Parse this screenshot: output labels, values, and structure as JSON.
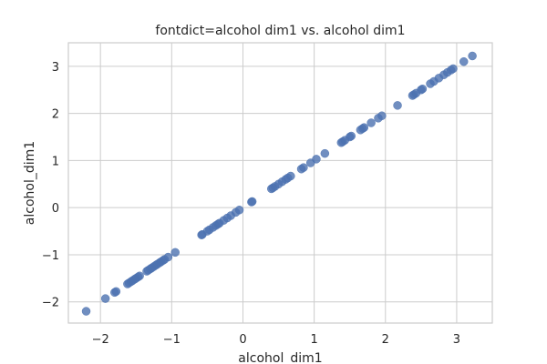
{
  "chart_data": {
    "type": "scatter",
    "title": "fontdict=alcohol dim1 vs. alcohol dim1",
    "xlabel": "alcohol_dim1",
    "ylabel": "alcohol_dim1",
    "xlim": [
      -2.45,
      3.5
    ],
    "ylim": [
      -2.45,
      3.5
    ],
    "xticks": [
      -2,
      -1,
      0,
      1,
      2,
      3
    ],
    "yticks": [
      -2,
      -1,
      0,
      1,
      2,
      3
    ],
    "xtick_labels": [
      "−2",
      "−1",
      "0",
      "1",
      "2",
      "3"
    ],
    "ytick_labels": [
      "−2",
      "−1",
      "0",
      "1",
      "2",
      "3"
    ],
    "grid": true,
    "color": "#4c72b0",
    "series": [
      {
        "x": [
          -2.2,
          -1.93,
          -1.8,
          -1.78,
          -1.62,
          -1.6,
          -1.57,
          -1.55,
          -1.52,
          -1.5,
          -1.47,
          -1.45,
          -1.35,
          -1.33,
          -1.3,
          -1.28,
          -1.25,
          -1.22,
          -1.2,
          -1.17,
          -1.15,
          -1.12,
          -1.1,
          -1.05,
          -0.95,
          -0.58,
          -0.57,
          -0.5,
          -0.47,
          -0.42,
          -0.38,
          -0.35,
          -0.33,
          -0.27,
          -0.22,
          -0.17,
          -0.1,
          -0.05,
          0.12,
          0.13,
          0.4,
          0.42,
          0.45,
          0.5,
          0.55,
          0.6,
          0.63,
          0.67,
          0.82,
          0.85,
          0.95,
          1.03,
          1.15,
          1.38,
          1.4,
          1.43,
          1.5,
          1.52,
          1.65,
          1.68,
          1.7,
          1.8,
          1.9,
          1.95,
          2.17,
          2.38,
          2.4,
          2.43,
          2.5,
          2.52,
          2.63,
          2.68,
          2.75,
          2.82,
          2.87,
          2.92,
          2.95,
          3.1,
          3.22
        ],
        "y": [
          -2.2,
          -1.93,
          -1.8,
          -1.78,
          -1.62,
          -1.6,
          -1.57,
          -1.55,
          -1.52,
          -1.5,
          -1.47,
          -1.45,
          -1.35,
          -1.33,
          -1.3,
          -1.28,
          -1.25,
          -1.22,
          -1.2,
          -1.17,
          -1.15,
          -1.12,
          -1.1,
          -1.05,
          -0.95,
          -0.58,
          -0.57,
          -0.5,
          -0.47,
          -0.42,
          -0.38,
          -0.35,
          -0.33,
          -0.27,
          -0.22,
          -0.17,
          -0.1,
          -0.05,
          0.12,
          0.13,
          0.4,
          0.42,
          0.45,
          0.5,
          0.55,
          0.6,
          0.63,
          0.67,
          0.82,
          0.85,
          0.95,
          1.03,
          1.15,
          1.38,
          1.4,
          1.43,
          1.5,
          1.52,
          1.65,
          1.68,
          1.7,
          1.8,
          1.9,
          1.95,
          2.17,
          2.38,
          2.4,
          2.43,
          2.5,
          2.52,
          2.63,
          2.68,
          2.75,
          2.82,
          2.87,
          2.92,
          2.95,
          3.1,
          3.22
        ]
      }
    ]
  }
}
